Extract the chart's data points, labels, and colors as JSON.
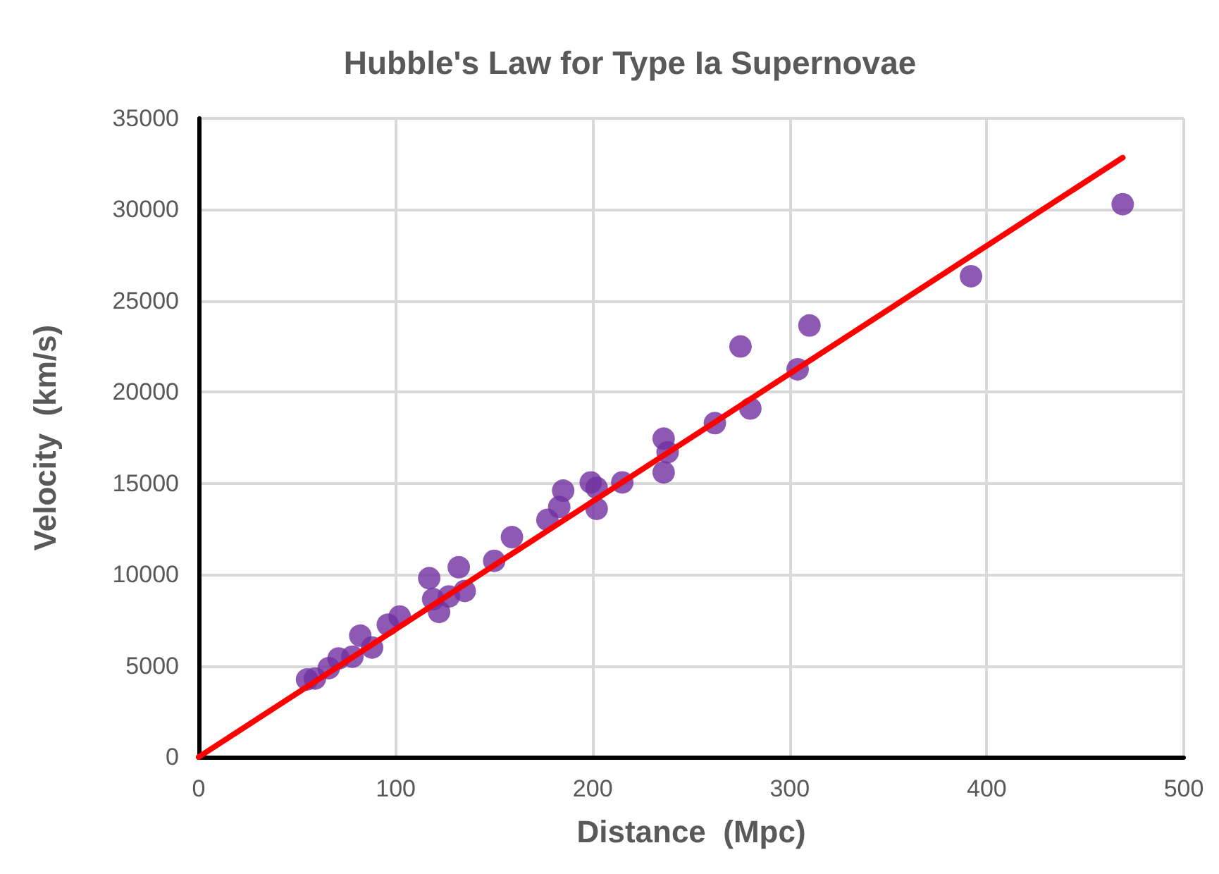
{
  "chart_data": {
    "type": "scatter",
    "title": "Hubble's Law for Type Ia Supernovae",
    "xlabel": "Distance  (Mpc)",
    "ylabel": "Velocity  (km/s)",
    "xlim": [
      0,
      500
    ],
    "xticks": [
      0,
      100,
      200,
      300,
      400,
      500
    ],
    "ylim": [
      0,
      35000
    ],
    "yticks": [
      0,
      5000,
      10000,
      15000,
      20000,
      25000,
      30000,
      35000
    ],
    "grid": true,
    "marker": "circle",
    "series": [
      {
        "color": "#7030a0",
        "x": [
          55,
          59,
          66,
          71,
          78,
          82,
          88,
          96,
          102,
          117,
          119,
          122,
          127,
          132,
          135,
          150,
          159,
          177,
          183,
          185,
          199,
          202,
          202,
          215,
          236,
          238,
          236,
          262,
          275,
          280,
          304,
          310,
          392,
          469
        ],
        "values": [
          4250,
          4300,
          4870,
          5400,
          5500,
          6650,
          6000,
          7250,
          7700,
          9800,
          8650,
          7950,
          8800,
          10400,
          9100,
          10750,
          12050,
          13000,
          13700,
          14600,
          15050,
          14750,
          13600,
          15050,
          17450,
          16700,
          15600,
          18300,
          22500,
          19100,
          21250,
          23650,
          26350,
          30300
        ]
      },
      {
        "type": "line",
        "color": "#ff0000",
        "x": [
          0,
          469
        ],
        "values": [
          0,
          32850
        ],
        "marker": "none"
      }
    ]
  }
}
